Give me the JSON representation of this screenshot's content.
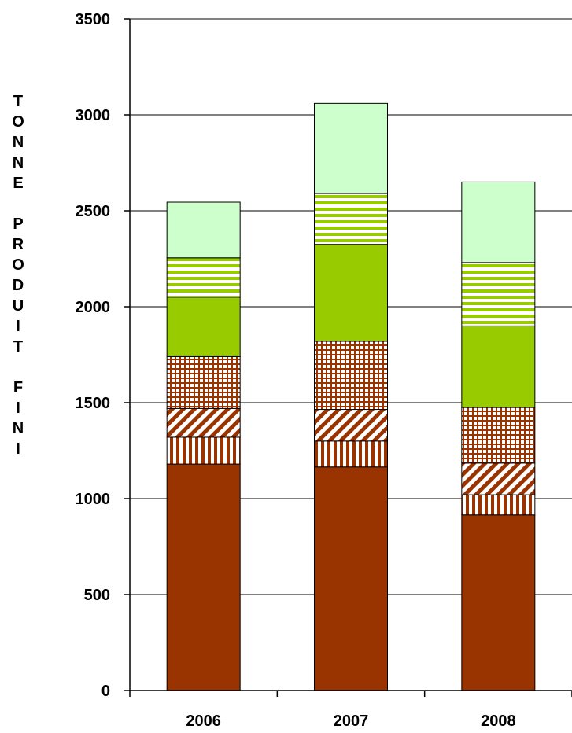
{
  "chart_data": {
    "type": "bar",
    "stacked": true,
    "ylabel": "TONNE PRODUIT FINI",
    "ylim": [
      0,
      3500
    ],
    "yticks": [
      "0",
      "500",
      "1000",
      "1500",
      "2000",
      "2500",
      "3000",
      "3500"
    ],
    "categories": [
      "2006",
      "2007",
      "2008"
    ],
    "grid": true,
    "series": [
      {
        "values": [
          1180,
          1165,
          915
        ],
        "color": "#993300",
        "pattern": "solid"
      },
      {
        "values": [
          140,
          135,
          105
        ],
        "color": "#993300",
        "pattern": "vertical-stripes"
      },
      {
        "values": [
          150,
          165,
          165
        ],
        "color": "#993300",
        "pattern": "diagonal-stripes"
      },
      {
        "values": [
          270,
          355,
          290
        ],
        "color": "#993300",
        "pattern": "grid"
      },
      {
        "values": [
          310,
          505,
          425
        ],
        "color": "#99CC00",
        "pattern": "solid"
      },
      {
        "values": [
          205,
          265,
          330
        ],
        "color": "#99CC00",
        "pattern": "horizontal-stripes"
      },
      {
        "values": [
          290,
          470,
          420
        ],
        "color": "#CCFFCC",
        "pattern": "solid"
      }
    ]
  }
}
